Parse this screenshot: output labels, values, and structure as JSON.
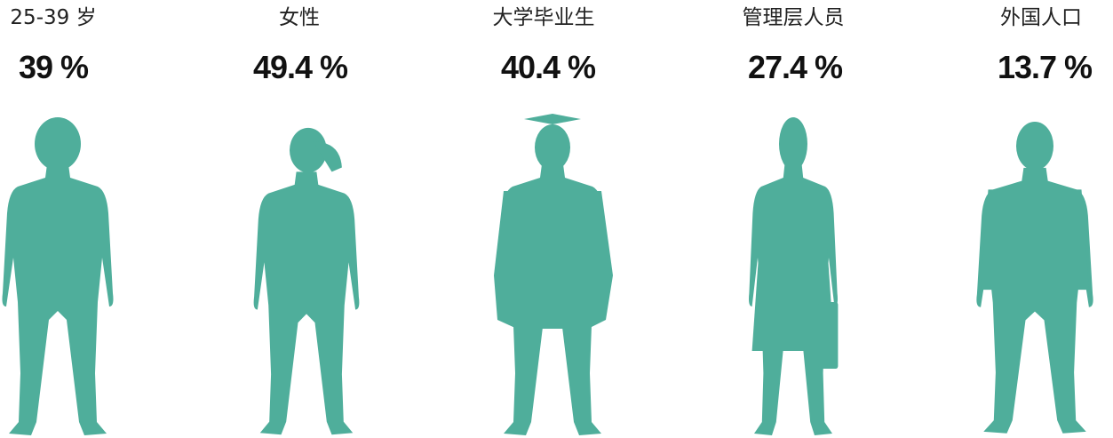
{
  "items": [
    {
      "label": "25-39 岁",
      "value": "39 %"
    },
    {
      "label": "女性",
      "value": "49.4 %"
    },
    {
      "label": "大学毕业生",
      "value": "40.4 %"
    },
    {
      "label": "管理层人员",
      "value": "27.4 %"
    },
    {
      "label": "外国人口",
      "value": "13.7 %"
    }
  ]
}
